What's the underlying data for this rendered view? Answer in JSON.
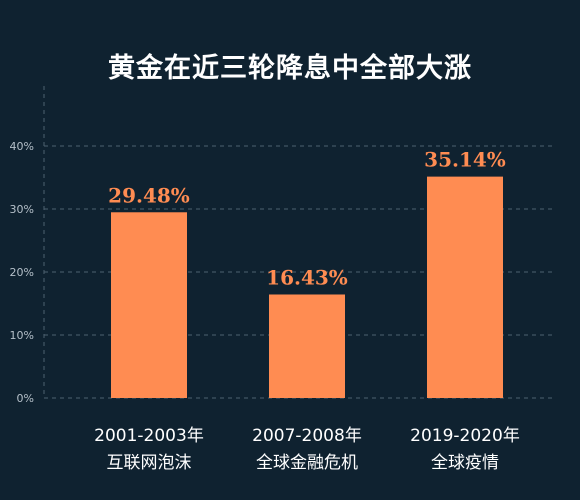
{
  "chart_data": {
    "type": "bar",
    "title": "黄金在近三轮降息中全部大涨",
    "categories": [
      [
        "2001-2003年",
        "互联网泡沫"
      ],
      [
        "2007-2008年",
        "全球金融危机"
      ],
      [
        "2019-2020年",
        "全球疫情"
      ]
    ],
    "values": [
      29.48,
      16.43,
      35.14
    ],
    "value_labels": [
      "29.48%",
      "16.43%",
      "35.14%"
    ],
    "yticks": [
      "0%",
      "10%",
      "20%",
      "30%",
      "40%"
    ],
    "ylim": [
      0,
      40
    ],
    "grid": true,
    "colors": {
      "bar": "#ff8c52",
      "label": "#ff8c52",
      "background": "#0f2230",
      "grid": "#4d6170",
      "text": "#ffffff",
      "tick": "#b5c0c9"
    }
  }
}
